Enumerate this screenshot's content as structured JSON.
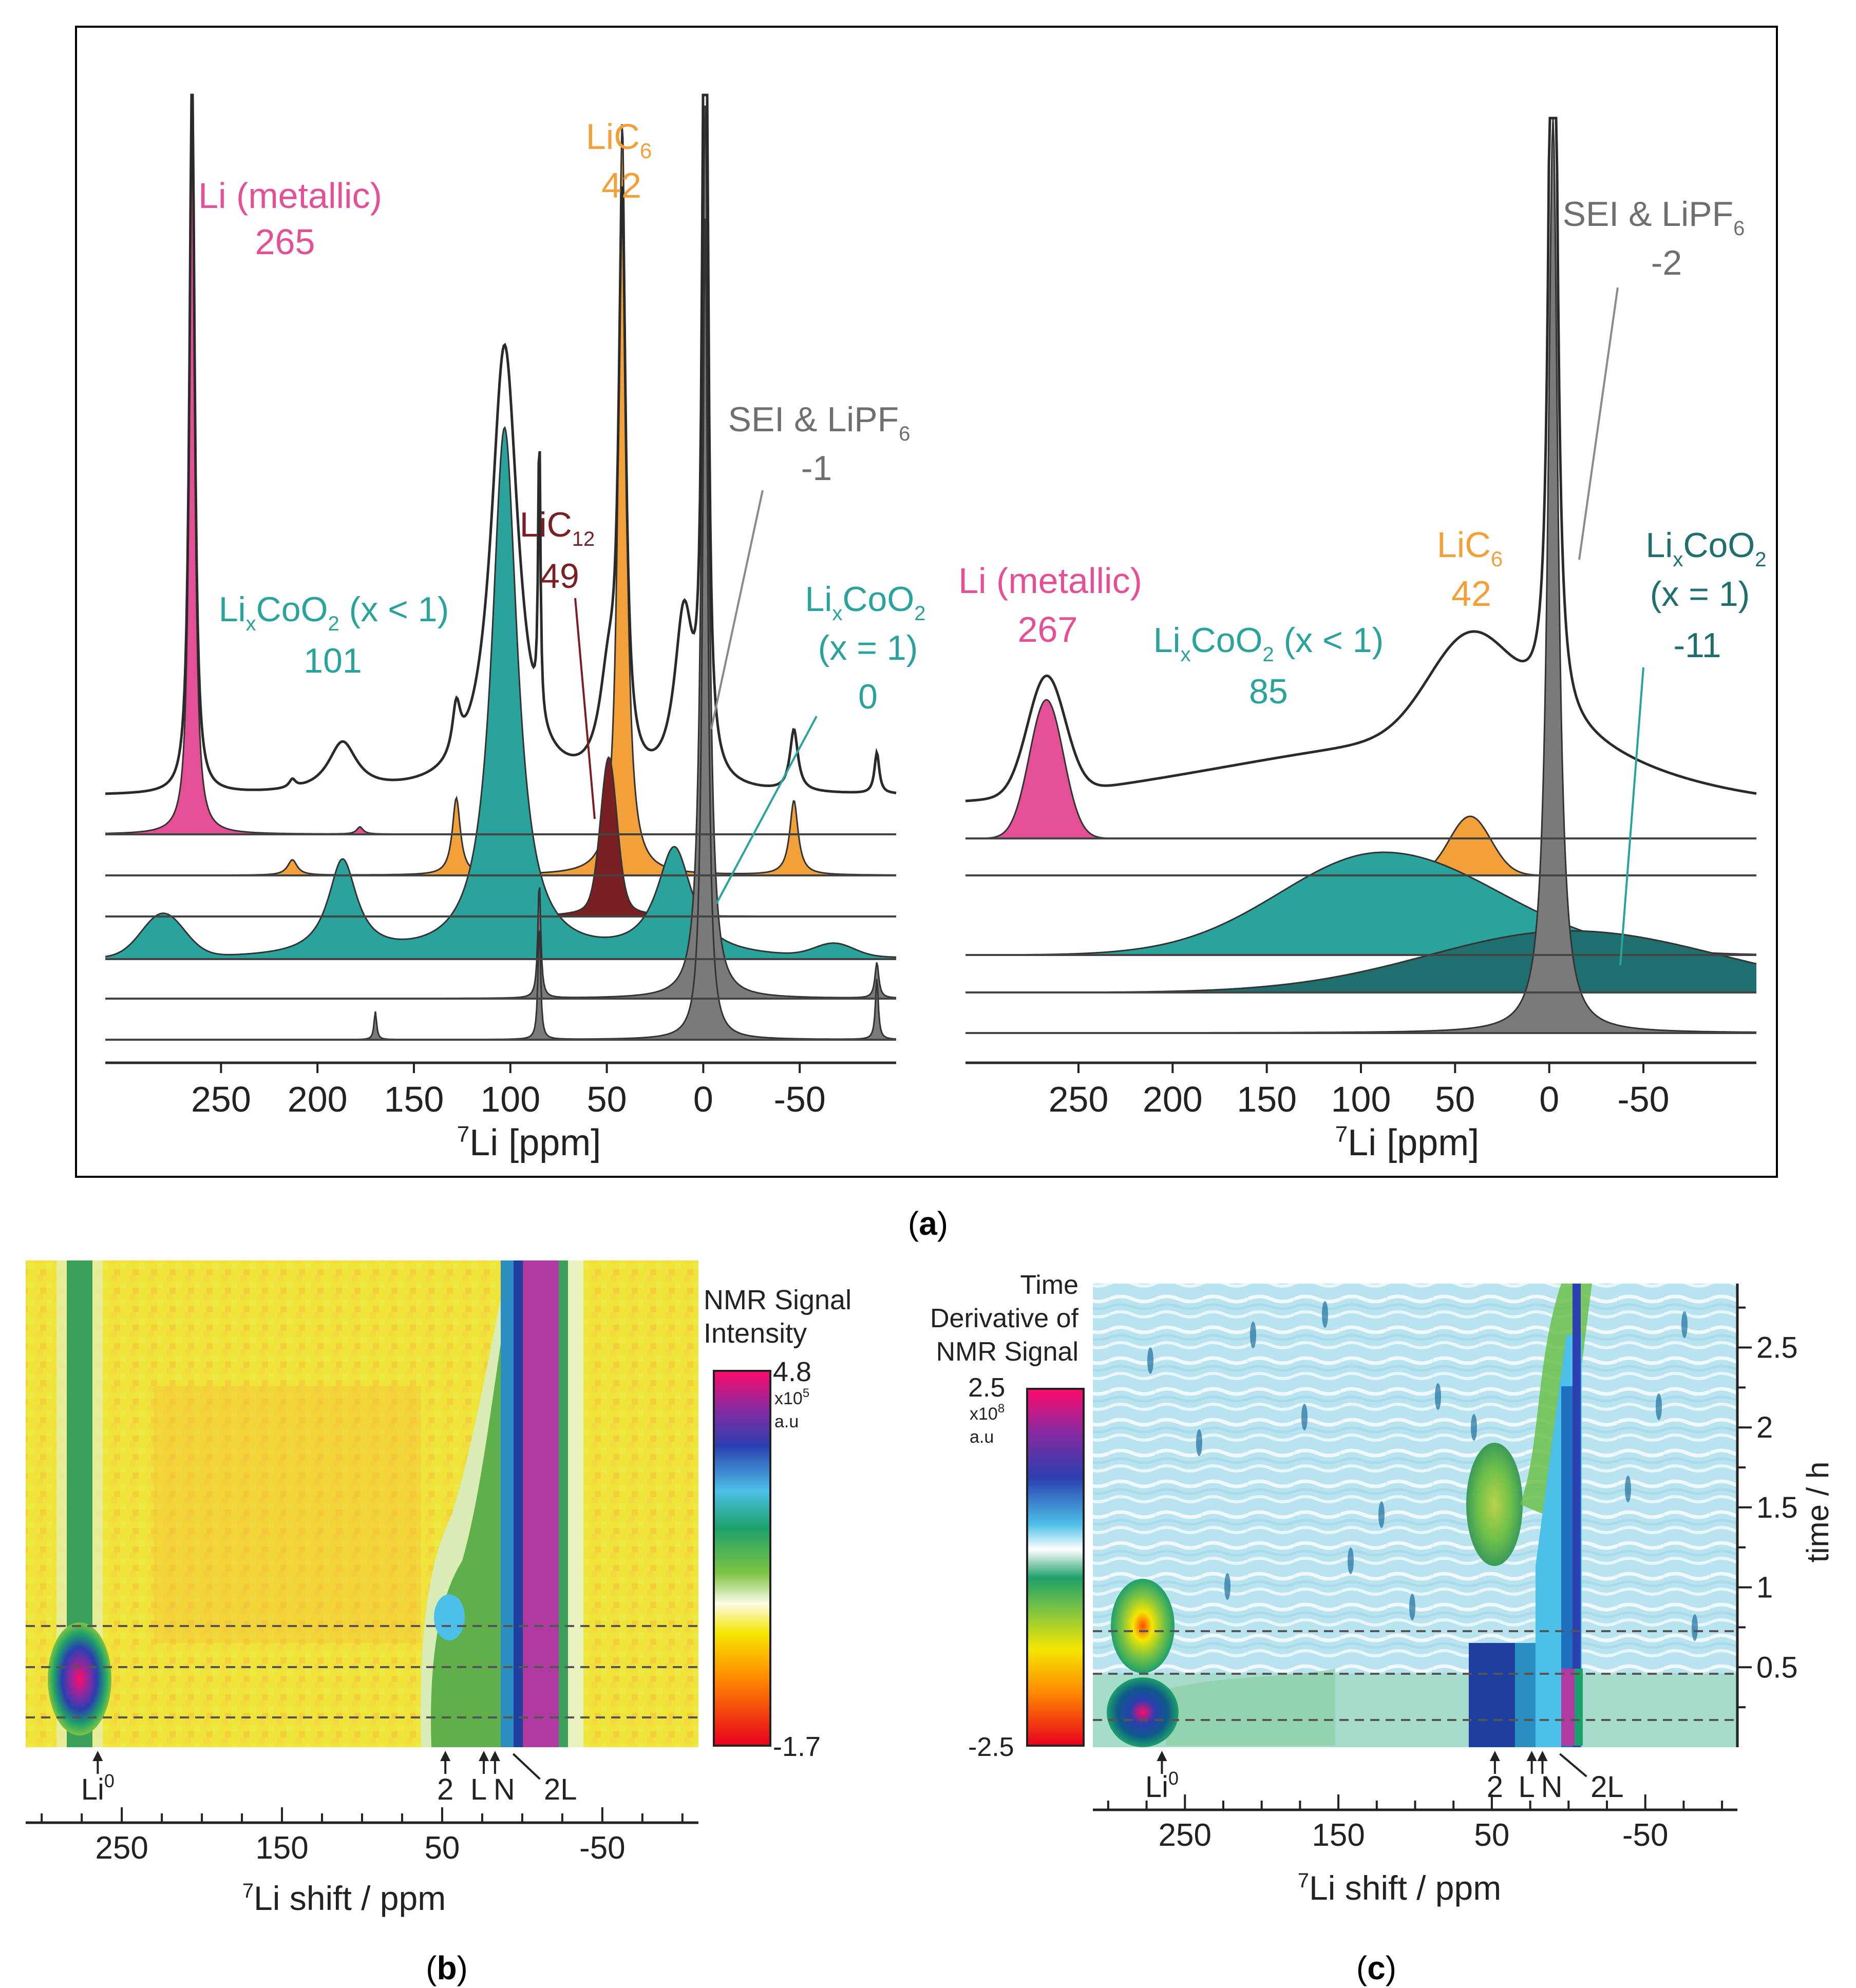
{
  "colors": {
    "pink": "#e54f96",
    "orange": "#f2a03a",
    "darkred": "#7a1f22",
    "teal": "#2aa39c",
    "darkteal": "#1e6f6d",
    "grey": "#7a7a7a",
    "labelGrey": "#6f6f6f",
    "line": "#2a2a2a"
  },
  "panel_labels": {
    "a": "(a)",
    "b": "(b)",
    "c": "(c)",
    "a_letter": "a",
    "b_letter": "b",
    "c_letter": "c",
    "a_open": "(",
    "a_close": ")"
  },
  "chart_data": [
    {
      "id": "a-left",
      "type": "line",
      "title": "",
      "xlabel_sup": "7",
      "xlabel": "Li [ppm]",
      "xlim": [
        310,
        -100
      ],
      "xticks": [
        250,
        200,
        150,
        100,
        50,
        0,
        -50
      ],
      "tick_labels": [
        "250",
        "200",
        "150",
        "100",
        "50",
        "0",
        "-50"
      ],
      "annotations": [
        {
          "line1": "Li (metallic)",
          "line2": "265",
          "color": "pink"
        },
        {
          "line1": "LiC",
          "sub": "6",
          "line2": "42",
          "color": "orange"
        },
        {
          "line1": "SEI & LiPF",
          "sub": "6",
          "line2": "-1",
          "color": "labelGrey"
        },
        {
          "line1": "LiC",
          "sub": "12",
          "line2": "49",
          "color": "darkred"
        },
        {
          "line1_a": "Li",
          "sub_a": "x",
          "line1_b": "CoO",
          "sub_b": "2",
          "line1_c": " (x < 1)",
          "line2": "101",
          "color": "teal"
        },
        {
          "line1_a": "Li",
          "sub_a": "x",
          "line1_b": "CoO",
          "sub_b": "2",
          "line1_c": "(x = 1)",
          "line2": "0",
          "color": "teal"
        }
      ],
      "series": [
        {
          "name": "Li (metallic)",
          "peaks_ppm": [
            265,
            213,
            178
          ],
          "color": "pink"
        },
        {
          "name": "LiC6",
          "peaks_ppm": [
            42,
            128,
            213,
            -47
          ],
          "color": "orange"
        },
        {
          "name": "LiC12",
          "peaks_ppm": [
            49
          ],
          "color": "darkred"
        },
        {
          "name": "LixCoO2 (x < 1)",
          "peaks_ppm": [
            101,
            187,
            15,
            280,
            -70
          ],
          "color": "teal"
        },
        {
          "name": "SEI & LiPF6",
          "peaks_ppm": [
            -1,
            85,
            -90,
            170
          ],
          "color": "grey"
        }
      ]
    },
    {
      "id": "a-right",
      "type": "line",
      "xlabel_sup": "7",
      "xlabel": "Li [ppm]",
      "xlim": [
        310,
        -110
      ],
      "xticks": [
        250,
        200,
        150,
        100,
        50,
        0,
        -50
      ],
      "tick_labels": [
        "250",
        "200",
        "150",
        "100",
        "50",
        "0",
        "-50"
      ],
      "annotations": [
        {
          "line1": "Li (metallic)",
          "line2": "267",
          "color": "pink"
        },
        {
          "line1": "SEI & LiPF",
          "sub": "6",
          "line2": "-2",
          "color": "labelGrey"
        },
        {
          "line1": "LiC",
          "sub": "6",
          "line2": "42",
          "color": "orange"
        },
        {
          "line1_a": "Li",
          "sub_a": "x",
          "line1_b": "CoO",
          "sub_b": "2",
          "line1_c": "(x = 1)",
          "line2": "-11",
          "color": "darkteal"
        },
        {
          "line1_a": "Li",
          "sub_a": "x",
          "line1_b": "CoO",
          "sub_b": "2",
          "line1_c": " (x < 1)",
          "line2": "85",
          "color": "teal"
        }
      ],
      "series": [
        {
          "name": "Li (metallic)",
          "peaks_ppm": [
            267
          ],
          "color": "pink"
        },
        {
          "name": "LiC6",
          "peaks_ppm": [
            42
          ],
          "color": "orange"
        },
        {
          "name": "LixCoO2 (x < 1)",
          "peaks_ppm": [
            85
          ],
          "color": "teal"
        },
        {
          "name": "LixCoO2 (x = 1)",
          "peaks_ppm": [
            -11
          ],
          "color": "darkteal"
        },
        {
          "name": "SEI & LiPF6",
          "peaks_ppm": [
            -2
          ],
          "color": "grey"
        }
      ]
    },
    {
      "id": "b",
      "type": "heatmap",
      "xlabel_sup": "7",
      "xlabel": "Li shift / ppm",
      "xlim": [
        310,
        -110
      ],
      "xticks": [
        250,
        150,
        50,
        -50
      ],
      "tick_labels": [
        "250",
        "150",
        "50",
        "-50"
      ],
      "markers": [
        {
          "label": "Li",
          "sup": "0",
          "ppm": 265
        },
        {
          "label": "2",
          "ppm": 48
        },
        {
          "label": "L",
          "ppm": 24
        },
        {
          "label": "N",
          "ppm": 17
        },
        {
          "label": "2L",
          "ppm": 5
        }
      ],
      "colorbar": {
        "title1": "NMR Signal",
        "title2": "Intensity",
        "max": "4.8",
        "scale": "x10",
        "scale_exp": "5",
        "unit": "a.u",
        "min": "-1.7"
      }
    },
    {
      "id": "c",
      "type": "heatmap",
      "xlabel_sup": "7",
      "xlabel": "Li shift / ppm",
      "ylabel": "time / h",
      "xlim": [
        310,
        -110
      ],
      "ylim": [
        0,
        2.9
      ],
      "xticks": [
        250,
        150,
        50,
        -50
      ],
      "tick_labels": [
        "250",
        "150",
        "50",
        "-50"
      ],
      "yticks": [
        0.5,
        1,
        1.5,
        2,
        2.5
      ],
      "ytick_labels": [
        "0.5",
        "1",
        "1.5",
        "2",
        "2.5"
      ],
      "markers": [
        {
          "label": "Li",
          "sup": "0",
          "ppm": 265
        },
        {
          "label": "2",
          "ppm": 48
        },
        {
          "label": "L",
          "ppm": 24
        },
        {
          "label": "N",
          "ppm": 17
        },
        {
          "label": "2L",
          "ppm": 5
        }
      ],
      "colorbar": {
        "title1": "Time",
        "title2": "Derivative of",
        "title3": "NMR Signal",
        "max": "2.5",
        "scale": "x10",
        "scale_exp": "8",
        "unit": "a.u",
        "min": "-2.5"
      }
    }
  ]
}
